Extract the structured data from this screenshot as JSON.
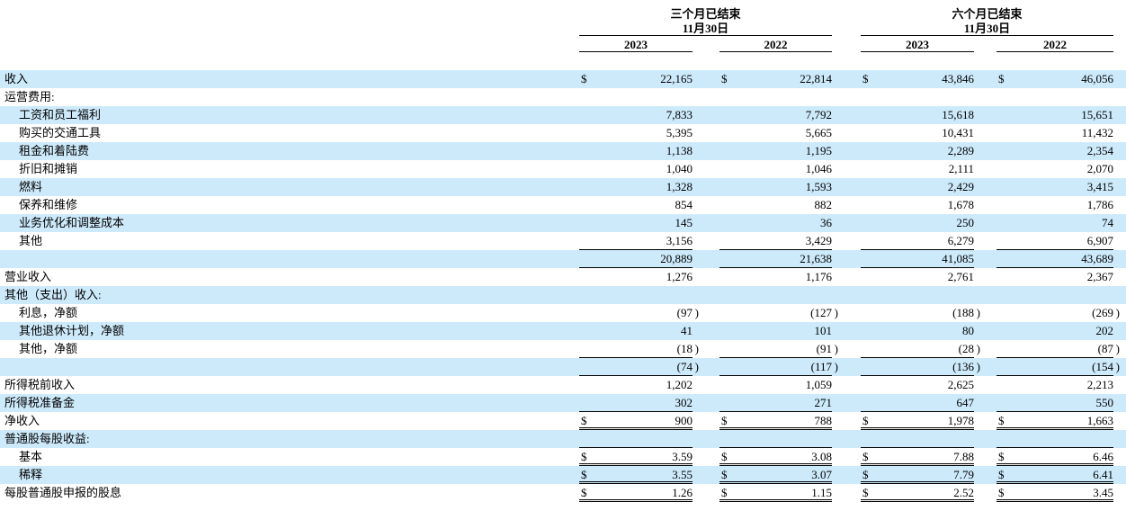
{
  "table": {
    "band_color": "#cdeafb",
    "text_color": "#000000",
    "header": {
      "groups": [
        {
          "line1": "三个月已结束",
          "line2": "11月30日"
        },
        {
          "line1": "六个月已结束",
          "line2": "11月30日"
        }
      ],
      "years": [
        "2023",
        "2022",
        "2023",
        "2022"
      ]
    },
    "rows": [
      {
        "label": "收入",
        "indent": 0,
        "band": "blue",
        "dollar": true,
        "underline": "none",
        "values": [
          "22,165",
          "22,814",
          "43,846",
          "46,056"
        ]
      },
      {
        "label": "运营费用:",
        "indent": 0,
        "band": "white",
        "dollar": false,
        "underline": "none",
        "values": [
          "",
          "",
          "",
          ""
        ]
      },
      {
        "label": "工资和员工福利",
        "indent": 1,
        "band": "blue",
        "dollar": false,
        "underline": "none",
        "values": [
          "7,833",
          "7,792",
          "15,618",
          "15,651"
        ]
      },
      {
        "label": "购买的交通工具",
        "indent": 1,
        "band": "white",
        "dollar": false,
        "underline": "none",
        "values": [
          "5,395",
          "5,665",
          "10,431",
          "11,432"
        ]
      },
      {
        "label": "租金和着陆费",
        "indent": 1,
        "band": "blue",
        "dollar": false,
        "underline": "none",
        "values": [
          "1,138",
          "1,195",
          "2,289",
          "2,354"
        ]
      },
      {
        "label": "折旧和摊销",
        "indent": 1,
        "band": "white",
        "dollar": false,
        "underline": "none",
        "values": [
          "1,040",
          "1,046",
          "2,111",
          "2,070"
        ]
      },
      {
        "label": "燃料",
        "indent": 1,
        "band": "blue",
        "dollar": false,
        "underline": "none",
        "values": [
          "1,328",
          "1,593",
          "2,429",
          "3,415"
        ]
      },
      {
        "label": "保养和维修",
        "indent": 1,
        "band": "white",
        "dollar": false,
        "underline": "none",
        "values": [
          "854",
          "882",
          "1,678",
          "1,786"
        ]
      },
      {
        "label": "业务优化和调整成本",
        "indent": 1,
        "band": "blue",
        "dollar": false,
        "underline": "none",
        "values": [
          "145",
          "36",
          "250",
          "74"
        ]
      },
      {
        "label": "其他",
        "indent": 1,
        "band": "white",
        "dollar": false,
        "underline": "single",
        "values": [
          "3,156",
          "3,429",
          "6,279",
          "6,907"
        ]
      },
      {
        "label": "",
        "indent": 0,
        "band": "blue",
        "dollar": false,
        "underline": "single",
        "values": [
          "20,889",
          "21,638",
          "41,085",
          "43,689"
        ]
      },
      {
        "label": "营业收入",
        "indent": 0,
        "band": "white",
        "dollar": false,
        "underline": "none",
        "values": [
          "1,276",
          "1,176",
          "2,761",
          "2,367"
        ]
      },
      {
        "label": "其他（支出）收入:",
        "indent": 0,
        "band": "blue",
        "dollar": false,
        "underline": "none",
        "values": [
          "",
          "",
          "",
          ""
        ]
      },
      {
        "label": "利息，净额",
        "indent": 1,
        "band": "white",
        "dollar": false,
        "underline": "none",
        "values": [
          "(97)",
          "(127)",
          "(188)",
          "(269)"
        ]
      },
      {
        "label": "其他退休计划，净额",
        "indent": 1,
        "band": "blue",
        "dollar": false,
        "underline": "none",
        "values": [
          "41",
          "101",
          "80",
          "202"
        ]
      },
      {
        "label": "其他，净额",
        "indent": 1,
        "band": "white",
        "dollar": false,
        "underline": "single",
        "values": [
          "(18)",
          "(91)",
          "(28)",
          "(87)"
        ]
      },
      {
        "label": "",
        "indent": 0,
        "band": "blue",
        "dollar": false,
        "underline": "single",
        "values": [
          "(74)",
          "(117)",
          "(136)",
          "(154)"
        ]
      },
      {
        "label": "所得税前收入",
        "indent": 0,
        "band": "white",
        "dollar": false,
        "underline": "none",
        "values": [
          "1,202",
          "1,059",
          "2,625",
          "2,213"
        ]
      },
      {
        "label": "所得税准备金",
        "indent": 0,
        "band": "blue",
        "dollar": false,
        "underline": "single",
        "values": [
          "302",
          "271",
          "647",
          "550"
        ]
      },
      {
        "label": "净收入",
        "indent": 0,
        "band": "white",
        "dollar": true,
        "underline": "double",
        "values": [
          "900",
          "788",
          "1,978",
          "1,663"
        ]
      },
      {
        "label": "普通股每股收益:",
        "indent": 0,
        "band": "blue",
        "dollar": false,
        "underline": "single",
        "values": [
          "",
          "",
          "",
          ""
        ]
      },
      {
        "label": "基本",
        "indent": 1,
        "band": "white",
        "dollar": true,
        "underline": "double",
        "values": [
          "3.59",
          "3.08",
          "7.88",
          "6.46"
        ]
      },
      {
        "label": "稀释",
        "indent": 1,
        "band": "blue",
        "dollar": true,
        "underline": "double",
        "values": [
          "3.55",
          "3.07",
          "7.79",
          "6.41"
        ]
      },
      {
        "label": "每股普通股申报的股息",
        "indent": 0,
        "band": "white",
        "dollar": true,
        "underline": "double",
        "values": [
          "1.26",
          "1.15",
          "2.52",
          "3.45"
        ]
      }
    ]
  }
}
